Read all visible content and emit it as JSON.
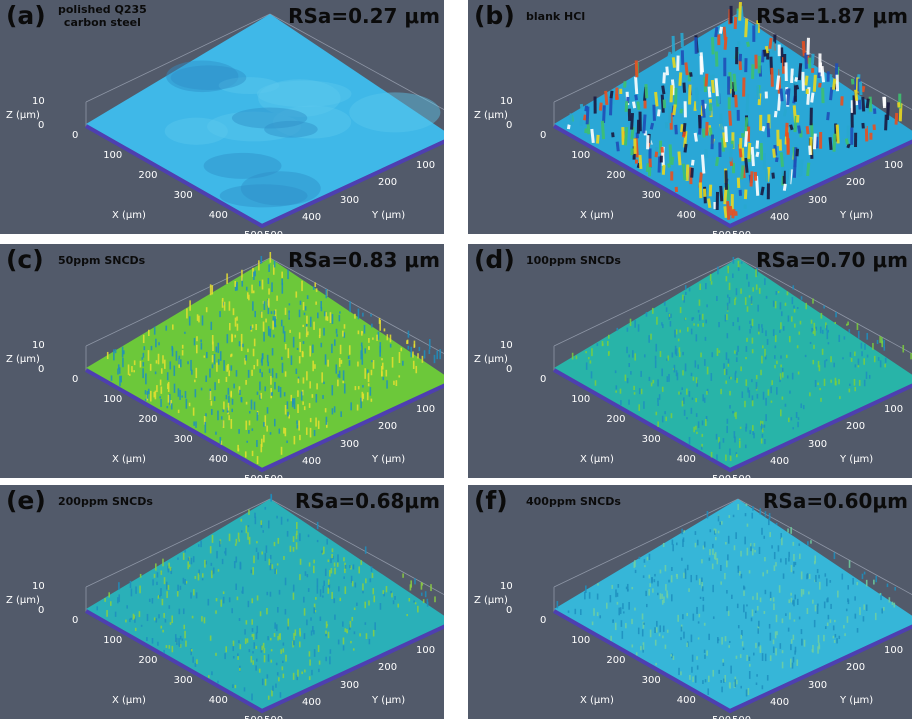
{
  "panels": [
    {
      "letter": "(a)",
      "condition_lines": [
        "polished Q235",
        "carbon steel"
      ],
      "rsa": "RSa=0.27 μm",
      "surface": {
        "base": "#3fb8e8",
        "spike": "#7fd6f0",
        "texture": "smooth-mottled"
      }
    },
    {
      "letter": "(b)",
      "condition_lines": [
        "blank HCl"
      ],
      "rsa": "RSa=1.87 μm",
      "surface": {
        "base": "#2aa7d6",
        "spike": "#e8d820",
        "texture": "rough-ridges"
      }
    },
    {
      "letter": "(c)",
      "condition_lines": [
        "50ppm SNCDs"
      ],
      "rsa": "RSa=0.83 μm",
      "surface": {
        "base": "#6cc83a",
        "spike": "#e8e030",
        "texture": "dense-peaks"
      }
    },
    {
      "letter": "(d)",
      "condition_lines": [
        "100ppm SNCDs"
      ],
      "rsa": "RSa=0.70 μm",
      "surface": {
        "base": "#28b4a8",
        "spike": "#7cd03c",
        "texture": "fine-peaks"
      }
    },
    {
      "letter": "(e)",
      "condition_lines": [
        "200ppm SNCDs"
      ],
      "rsa": "RSa=0.68μm",
      "surface": {
        "base": "#2ab0b8",
        "spike": "#8cd040",
        "texture": "fine-peaks"
      }
    },
    {
      "letter": "(f)",
      "condition_lines": [
        "400ppm SNCDs"
      ],
      "rsa": "RSa=0.60μm",
      "surface": {
        "base": "#36b6d8",
        "spike": "#70d0a0",
        "texture": "fine-peaks"
      }
    }
  ],
  "axes": {
    "z_label": "Z (μm)",
    "x_label": "X (μm)",
    "y_label": "Y (μm)",
    "z_ticks": [
      "10",
      "0"
    ],
    "x_ticks": [
      "0",
      "100",
      "200",
      "300",
      "400",
      "500"
    ],
    "y_ticks": [
      "0",
      "100",
      "200",
      "300",
      "400",
      "500"
    ]
  },
  "colors": {
    "background": "#525a6a",
    "base_edge": "#4e3fb0",
    "label_text": "#0b0b0b",
    "axis_text": "#ffffff"
  }
}
